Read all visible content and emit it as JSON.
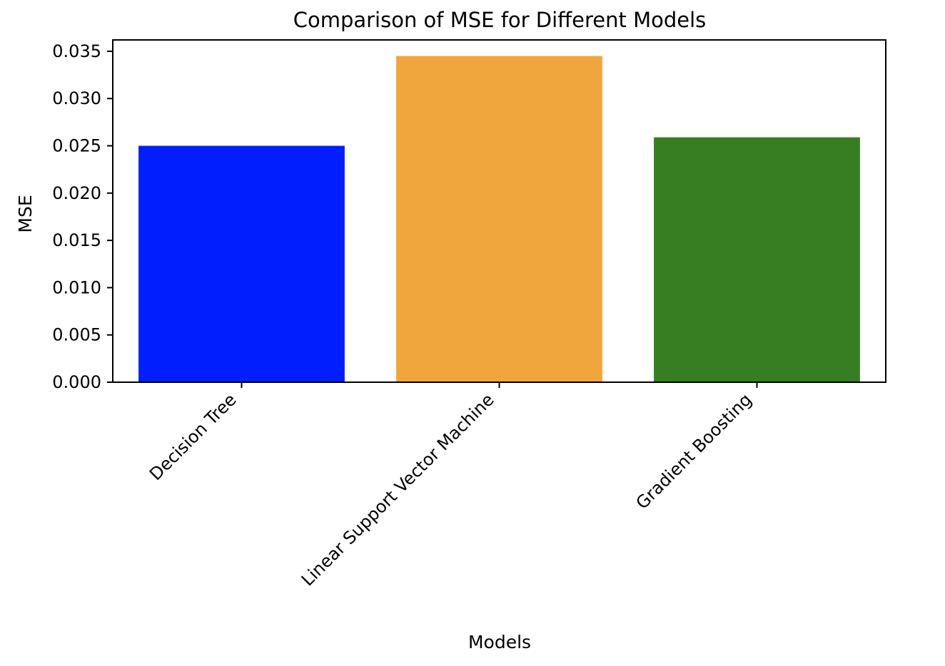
{
  "chart_data": {
    "type": "bar",
    "title": "Comparison of MSE for Different Models",
    "xlabel": "Models",
    "ylabel": "MSE",
    "categories": [
      "Decision Tree",
      "Linear Support Vector Machine",
      "Gradient Boosting"
    ],
    "values": [
      0.025,
      0.0345,
      0.0259
    ],
    "colors": [
      "#001eff",
      "#f0a63c",
      "#377e22"
    ],
    "ylim": [
      0,
      0.0362
    ],
    "yticks": [
      "0.000",
      "0.005",
      "0.010",
      "0.015",
      "0.020",
      "0.025",
      "0.030",
      "0.035"
    ],
    "grid": false,
    "legend": "none"
  }
}
